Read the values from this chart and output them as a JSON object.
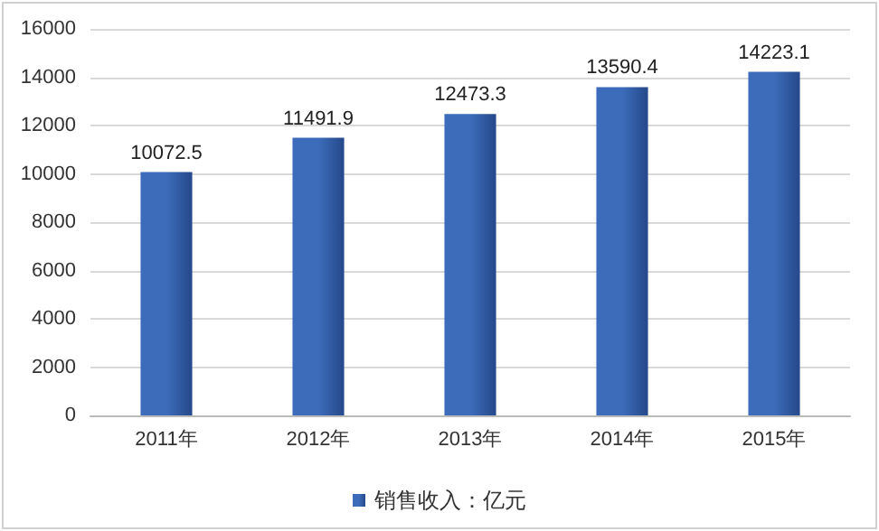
{
  "chart_data": {
    "type": "bar",
    "categories": [
      "2011年",
      "2012年",
      "2013年",
      "2014年",
      "2015年"
    ],
    "series": [
      {
        "name": "销售收入：亿元",
        "color": "#3c6cba",
        "values": [
          10072.5,
          11491.9,
          12473.3,
          13590.4,
          14223.1
        ]
      }
    ],
    "ylim": [
      0,
      16000
    ],
    "yticks": [
      0,
      2000,
      4000,
      6000,
      8000,
      10000,
      12000,
      14000,
      16000
    ],
    "grid": "y",
    "legend": "bottom",
    "data_labels": true
  }
}
